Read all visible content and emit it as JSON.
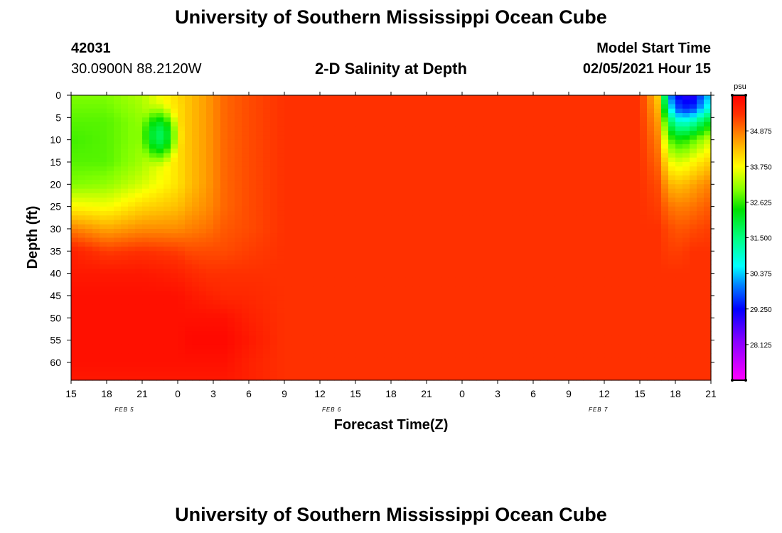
{
  "page": {
    "title_top": "University of Southern Mississippi Ocean Cube",
    "title_bottom": "University of Southern Mississippi Ocean Cube",
    "station_id": "42031",
    "station_coords": "30.0900N 88.2120W",
    "model_start_label": "Model Start Time",
    "model_start_value": "02/05/2021 Hour 15"
  },
  "chart_data": {
    "type": "heatmap",
    "title": "2-D Salinity at Depth",
    "xlabel": "Forecast Time(Z)",
    "ylabel": "Depth (ft)",
    "x_unit": "forecast hours from model start",
    "xlim": [
      0,
      54
    ],
    "ylim": [
      64,
      0
    ],
    "x_ticks": [
      0,
      3,
      6,
      9,
      12,
      15,
      18,
      21,
      24,
      27,
      30,
      33,
      36,
      39,
      42,
      45,
      48,
      51,
      54
    ],
    "x_tick_labels": [
      "15",
      "18",
      "21",
      "0",
      "3",
      "6",
      "9",
      "12",
      "15",
      "18",
      "21",
      "0",
      "3",
      "6",
      "9",
      "12",
      "15",
      "18",
      "21"
    ],
    "date_labels": [
      {
        "x": 4.5,
        "text": "FEB 5"
      },
      {
        "x": 22.0,
        "text": "FEB 6"
      },
      {
        "x": 44.5,
        "text": "FEB 7"
      }
    ],
    "y_ticks": [
      0,
      5,
      10,
      15,
      20,
      25,
      30,
      35,
      40,
      45,
      50,
      55,
      60
    ],
    "y_tick_labels": [
      "0",
      "5",
      "10",
      "15",
      "20",
      "25",
      "30",
      "35",
      "40",
      "45",
      "50",
      "55",
      "60"
    ],
    "colorbar": {
      "unit": "psu",
      "min": 27.0,
      "max": 36.0,
      "tick_values": [
        28.125,
        29.25,
        30.375,
        31.5,
        32.625,
        33.75,
        34.875
      ],
      "tick_labels": [
        "28.125",
        "29.250",
        "30.375",
        "31.500",
        "32.625",
        "33.750",
        "34.875"
      ],
      "stops": [
        {
          "value": 27.0,
          "color": "#ff00ff"
        },
        {
          "value": 28.3,
          "color": "#8000ff"
        },
        {
          "value": 29.25,
          "color": "#0000ff"
        },
        {
          "value": 30.0,
          "color": "#0080ff"
        },
        {
          "value": 30.6,
          "color": "#00ffff"
        },
        {
          "value": 31.5,
          "color": "#00ff80"
        },
        {
          "value": 32.4,
          "color": "#00e000"
        },
        {
          "value": 33.0,
          "color": "#80ff00"
        },
        {
          "value": 33.75,
          "color": "#ffff00"
        },
        {
          "value": 34.3,
          "color": "#ffc000"
        },
        {
          "value": 34.8,
          "color": "#ff8000"
        },
        {
          "value": 35.4,
          "color": "#ff3000"
        },
        {
          "value": 36.0,
          "color": "#ff0000"
        }
      ]
    },
    "grid": {
      "x": [
        0,
        3,
        6,
        9,
        10,
        11.5,
        13,
        15,
        18,
        21,
        24,
        27,
        30,
        39,
        48,
        49.5,
        50.5,
        51.5,
        52.5,
        54
      ],
      "y": [
        0,
        3,
        6,
        10,
        15,
        20,
        25,
        30,
        35,
        40,
        45,
        50,
        55,
        60,
        64
      ],
      "values": [
        [
          33.0,
          33.0,
          33.3,
          34.1,
          34.3,
          34.6,
          35.0,
          35.2,
          35.4,
          35.4,
          35.4,
          35.4,
          35.4,
          35.4,
          35.4,
          34.2,
          30.0,
          29.0,
          29.0,
          30.5
        ],
        [
          32.9,
          32.9,
          33.2,
          34.0,
          34.3,
          34.6,
          35.0,
          35.2,
          35.4,
          35.4,
          35.4,
          35.4,
          35.4,
          35.4,
          35.4,
          34.4,
          30.7,
          29.4,
          29.6,
          31.0
        ],
        [
          32.8,
          32.8,
          33.1,
          34.0,
          34.3,
          34.6,
          35.0,
          35.2,
          35.4,
          35.4,
          35.4,
          35.4,
          35.4,
          35.4,
          35.4,
          34.6,
          31.8,
          30.8,
          31.2,
          32.3
        ],
        [
          32.7,
          32.8,
          33.1,
          34.0,
          34.3,
          34.6,
          35.0,
          35.2,
          35.4,
          35.4,
          35.4,
          35.4,
          35.4,
          35.4,
          35.4,
          34.8,
          32.8,
          32.4,
          32.8,
          33.5
        ],
        [
          32.8,
          32.8,
          33.2,
          34.0,
          34.3,
          34.6,
          35.0,
          35.2,
          35.4,
          35.4,
          35.4,
          35.4,
          35.4,
          35.4,
          35.4,
          35.0,
          33.7,
          33.5,
          33.8,
          34.2
        ],
        [
          33.0,
          33.1,
          33.5,
          34.0,
          34.3,
          34.6,
          35.0,
          35.2,
          35.4,
          35.4,
          35.4,
          35.4,
          35.4,
          35.4,
          35.4,
          35.2,
          34.4,
          34.3,
          34.5,
          34.8
        ],
        [
          33.8,
          33.7,
          34.1,
          34.3,
          34.5,
          34.7,
          35.0,
          35.2,
          35.4,
          35.4,
          35.4,
          35.4,
          35.4,
          35.4,
          35.4,
          35.3,
          34.9,
          34.8,
          34.9,
          35.1
        ],
        [
          34.8,
          34.5,
          34.7,
          34.7,
          34.8,
          34.9,
          35.1,
          35.2,
          35.4,
          35.4,
          35.4,
          35.4,
          35.4,
          35.4,
          35.4,
          35.4,
          35.2,
          35.1,
          35.2,
          35.3
        ],
        [
          35.6,
          35.3,
          35.4,
          35.3,
          35.2,
          35.2,
          35.2,
          35.3,
          35.4,
          35.4,
          35.4,
          35.4,
          35.4,
          35.4,
          35.4,
          35.4,
          35.3,
          35.3,
          35.4,
          35.4
        ],
        [
          35.7,
          35.7,
          35.7,
          35.6,
          35.5,
          35.4,
          35.4,
          35.4,
          35.4,
          35.4,
          35.4,
          35.4,
          35.4,
          35.4,
          35.4,
          35.4,
          35.4,
          35.4,
          35.4,
          35.4
        ],
        [
          35.8,
          35.8,
          35.8,
          35.8,
          35.7,
          35.6,
          35.5,
          35.5,
          35.4,
          35.4,
          35.4,
          35.4,
          35.4,
          35.4,
          35.4,
          35.4,
          35.4,
          35.4,
          35.4,
          35.4
        ],
        [
          35.8,
          35.8,
          35.8,
          35.8,
          35.8,
          35.8,
          35.8,
          35.6,
          35.4,
          35.4,
          35.4,
          35.4,
          35.4,
          35.4,
          35.4,
          35.4,
          35.4,
          35.4,
          35.4,
          35.4
        ],
        [
          35.8,
          35.8,
          35.8,
          35.8,
          35.9,
          35.9,
          35.9,
          35.7,
          35.4,
          35.4,
          35.4,
          35.4,
          35.4,
          35.4,
          35.4,
          35.4,
          35.4,
          35.4,
          35.4,
          35.4
        ],
        [
          35.8,
          35.8,
          35.8,
          35.8,
          35.8,
          35.8,
          35.8,
          35.6,
          35.4,
          35.4,
          35.4,
          35.4,
          35.4,
          35.4,
          35.4,
          35.4,
          35.4,
          35.4,
          35.4,
          35.4
        ],
        [
          35.7,
          35.7,
          35.7,
          35.7,
          35.7,
          35.7,
          35.7,
          35.6,
          35.4,
          35.4,
          35.4,
          35.4,
          35.4,
          35.4,
          35.4,
          35.4,
          35.4,
          35.4,
          35.4,
          35.4
        ]
      ],
      "cyan_pocket": {
        "x_center": 7.5,
        "x_halfwidth": 2.0,
        "y_center": 9,
        "y_halfwidth": 8,
        "min_value": 31.6
      }
    }
  }
}
